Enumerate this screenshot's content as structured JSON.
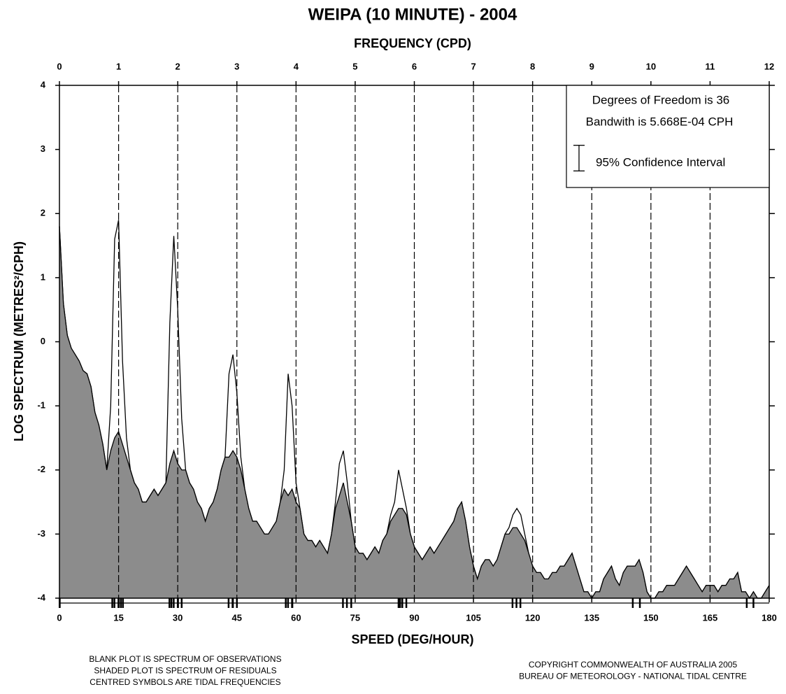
{
  "chart_data": {
    "type": "area",
    "title": "WEIPA (10 MINUTE) - 2004",
    "x2_label": "FREQUENCY (CPD)",
    "x_label": "SPEED (DEG/HOUR)",
    "y_label": "LOG SPECTRUM (METRES²/CPH)",
    "xlim": [
      0,
      180
    ],
    "xticks": [
      0,
      15,
      30,
      45,
      60,
      75,
      90,
      105,
      120,
      135,
      150,
      165,
      180
    ],
    "x2lim": [
      0,
      12
    ],
    "x2ticks": [
      0,
      1,
      2,
      3,
      4,
      5,
      6,
      7,
      8,
      9,
      10,
      11,
      12
    ],
    "ylim": [
      -4,
      4
    ],
    "yticks": [
      -4,
      -3,
      -2,
      -1,
      0,
      1,
      2,
      3,
      4
    ],
    "grid": "dashed",
    "x": [
      0,
      1,
      2,
      3,
      4,
      5,
      6,
      7,
      8,
      9,
      10,
      11,
      12,
      13,
      14,
      15,
      16,
      17,
      18,
      19,
      20,
      21,
      22,
      23,
      24,
      25,
      26,
      27,
      28,
      29,
      30,
      31,
      32,
      33,
      34,
      35,
      36,
      37,
      38,
      39,
      40,
      41,
      42,
      43,
      44,
      45,
      46,
      47,
      48,
      49,
      50,
      51,
      52,
      53,
      54,
      55,
      56,
      57,
      58,
      59,
      60,
      61,
      62,
      63,
      64,
      65,
      66,
      67,
      68,
      69,
      70,
      71,
      72,
      73,
      74,
      75,
      76,
      77,
      78,
      79,
      80,
      81,
      82,
      83,
      84,
      85,
      86,
      87,
      88,
      89,
      90,
      91,
      92,
      93,
      94,
      95,
      96,
      97,
      98,
      99,
      100,
      101,
      102,
      103,
      104,
      105,
      106,
      107,
      108,
      109,
      110,
      111,
      112,
      113,
      114,
      115,
      116,
      117,
      118,
      119,
      120,
      121,
      122,
      123,
      124,
      125,
      126,
      127,
      128,
      129,
      130,
      131,
      132,
      133,
      134,
      135,
      136,
      137,
      138,
      139,
      140,
      141,
      142,
      143,
      144,
      145,
      146,
      147,
      148,
      149,
      150,
      151,
      152,
      153,
      154,
      155,
      156,
      157,
      158,
      159,
      160,
      161,
      162,
      163,
      164,
      165,
      166,
      167,
      168,
      169,
      170,
      171,
      172,
      173,
      174,
      175,
      176,
      177,
      178,
      179,
      180
    ],
    "series": [
      {
        "color": "#000000",
        "fill": "#ffffff",
        "values": [
          1.8,
          0.6,
          0.1,
          -0.1,
          -0.2,
          -0.3,
          -0.45,
          -0.5,
          -0.7,
          -1.1,
          -1.3,
          -1.6,
          -2.0,
          -1.0,
          1.6,
          1.9,
          -0.3,
          -1.5,
          -2.0,
          -2.2,
          -2.3,
          -2.5,
          -2.5,
          -2.4,
          -2.3,
          -2.4,
          -2.3,
          -2.2,
          0.3,
          1.65,
          0.5,
          -1.2,
          -2.0,
          -2.2,
          -2.3,
          -2.5,
          -2.6,
          -2.8,
          -2.6,
          -2.5,
          -2.3,
          -2.0,
          -1.8,
          -0.5,
          -0.2,
          -0.8,
          -1.8,
          -2.3,
          -2.6,
          -2.8,
          -2.8,
          -2.9,
          -3.0,
          -3.0,
          -2.9,
          -2.8,
          -2.5,
          -2.0,
          -0.5,
          -1.0,
          -2.2,
          -2.6,
          -3.0,
          -3.1,
          -3.1,
          -3.2,
          -3.1,
          -3.2,
          -3.3,
          -3.0,
          -2.5,
          -1.9,
          -1.7,
          -2.2,
          -2.8,
          -3.2,
          -3.3,
          -3.3,
          -3.4,
          -3.3,
          -3.2,
          -3.3,
          -3.1,
          -3.0,
          -2.7,
          -2.5,
          -2.0,
          -2.3,
          -2.6,
          -3.0,
          -3.2,
          -3.3,
          -3.4,
          -3.3,
          -3.2,
          -3.3,
          -3.2,
          -3.1,
          -3.0,
          -2.9,
          -2.8,
          -2.6,
          -2.5,
          -2.8,
          -3.2,
          -3.5,
          -3.7,
          -3.5,
          -3.4,
          -3.4,
          -3.5,
          -3.4,
          -3.2,
          -3.0,
          -2.9,
          -2.7,
          -2.6,
          -2.7,
          -3.0,
          -3.3,
          -3.5,
          -3.6,
          -3.6,
          -3.7,
          -3.7,
          -3.6,
          -3.6,
          -3.5,
          -3.5,
          -3.4,
          -3.3,
          -3.5,
          -3.7,
          -3.9,
          -3.9,
          -4.0,
          -3.9,
          -3.9,
          -3.7,
          -3.6,
          -3.5,
          -3.7,
          -3.8,
          -3.6,
          -3.5,
          -3.5,
          -3.5,
          -3.4,
          -3.6,
          -3.9,
          -4.0,
          -4.0,
          -3.9,
          -3.9,
          -3.8,
          -3.8,
          -3.8,
          -3.7,
          -3.6,
          -3.5,
          -3.6,
          -3.7,
          -3.8,
          -3.9,
          -3.8,
          -3.8,
          -3.8,
          -3.9,
          -3.8,
          -3.8,
          -3.7,
          -3.7,
          -3.6,
          -3.9,
          -3.9,
          -4.0,
          -3.9,
          -4.0,
          -4.0,
          -3.9,
          -3.8
        ]
      },
      {
        "color": "#000000",
        "fill": "#8c8c8c",
        "values": [
          1.8,
          0.6,
          0.1,
          -0.1,
          -0.2,
          -0.3,
          -0.45,
          -0.5,
          -0.7,
          -1.1,
          -1.3,
          -1.6,
          -2.0,
          -1.7,
          -1.5,
          -1.4,
          -1.6,
          -1.8,
          -2.0,
          -2.2,
          -2.3,
          -2.5,
          -2.5,
          -2.4,
          -2.3,
          -2.4,
          -2.3,
          -2.2,
          -1.9,
          -1.7,
          -1.9,
          -2.0,
          -2.0,
          -2.2,
          -2.3,
          -2.5,
          -2.6,
          -2.8,
          -2.6,
          -2.5,
          -2.3,
          -2.0,
          -1.8,
          -1.8,
          -1.7,
          -1.8,
          -2.0,
          -2.3,
          -2.6,
          -2.8,
          -2.8,
          -2.9,
          -3.0,
          -3.0,
          -2.9,
          -2.8,
          -2.5,
          -2.3,
          -2.4,
          -2.3,
          -2.5,
          -2.6,
          -3.0,
          -3.1,
          -3.1,
          -3.2,
          -3.1,
          -3.2,
          -3.3,
          -3.0,
          -2.6,
          -2.4,
          -2.2,
          -2.5,
          -2.8,
          -3.2,
          -3.3,
          -3.3,
          -3.4,
          -3.3,
          -3.2,
          -3.3,
          -3.1,
          -3.0,
          -2.8,
          -2.7,
          -2.6,
          -2.6,
          -2.7,
          -3.0,
          -3.2,
          -3.3,
          -3.4,
          -3.3,
          -3.2,
          -3.3,
          -3.2,
          -3.1,
          -3.0,
          -2.9,
          -2.8,
          -2.6,
          -2.5,
          -2.8,
          -3.2,
          -3.5,
          -3.7,
          -3.5,
          -3.4,
          -3.4,
          -3.5,
          -3.4,
          -3.2,
          -3.0,
          -3.0,
          -2.9,
          -2.9,
          -3.0,
          -3.1,
          -3.3,
          -3.5,
          -3.6,
          -3.6,
          -3.7,
          -3.7,
          -3.6,
          -3.6,
          -3.5,
          -3.5,
          -3.4,
          -3.3,
          -3.5,
          -3.7,
          -3.9,
          -3.9,
          -4.0,
          -3.9,
          -3.9,
          -3.7,
          -3.6,
          -3.5,
          -3.7,
          -3.8,
          -3.6,
          -3.5,
          -3.5,
          -3.5,
          -3.4,
          -3.6,
          -3.9,
          -4.0,
          -4.0,
          -3.9,
          -3.9,
          -3.8,
          -3.8,
          -3.8,
          -3.7,
          -3.6,
          -3.5,
          -3.6,
          -3.7,
          -3.8,
          -3.9,
          -3.8,
          -3.8,
          -3.8,
          -3.9,
          -3.8,
          -3.8,
          -3.7,
          -3.7,
          -3.6,
          -3.9,
          -3.9,
          -4.0,
          -3.9,
          -4.0,
          -4.0,
          -3.9,
          -3.8
        ]
      }
    ],
    "tidal_frequencies": [
      0.04,
      0.08,
      13.4,
      13.94,
      14.96,
      15.04,
      15.58,
      16.1,
      27.9,
      28.4,
      28.98,
      30.0,
      30.08,
      31.0,
      42.9,
      43.9,
      44.0,
      45.0,
      57.4,
      57.97,
      58.98,
      59.07,
      71.9,
      72.9,
      74.0,
      86.0,
      86.4,
      86.95,
      87.97,
      114.9,
      115.9,
      116.9,
      145.4,
      147.2,
      174.3,
      176.0
    ],
    "legend_lines": [
      "Degrees of Freedom is 36",
      "Bandwith is  5.668E-04 CPH",
      "95% Confidence Interval"
    ],
    "confidence_interval": 0.4,
    "notes_left": [
      "BLANK PLOT IS SPECTRUM OF OBSERVATIONS",
      "SHADED PLOT IS SPECTRUM OF RESIDUALS",
      "CENTRED SYMBOLS ARE TIDAL FREQUENCIES"
    ],
    "notes_right": [
      "COPYRIGHT COMMONWEALTH OF AUSTRALIA 2005",
      "BUREAU OF METEOROLOGY - NATIONAL TIDAL CENTRE"
    ]
  }
}
